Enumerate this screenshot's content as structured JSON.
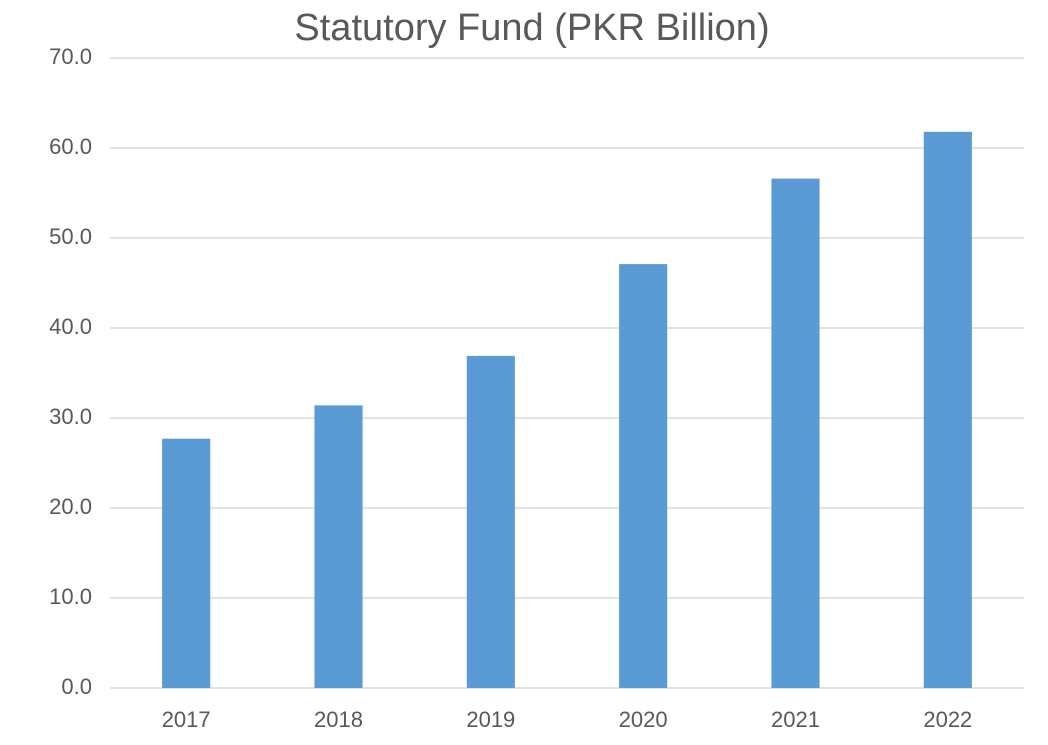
{
  "chart_data": {
    "type": "bar",
    "title": "Statutory Fund (PKR Billion)",
    "categories": [
      "2017",
      "2018",
      "2019",
      "2020",
      "2021",
      "2022"
    ],
    "values": [
      27.7,
      31.4,
      36.9,
      47.1,
      56.6,
      61.8
    ],
    "color": "#5b9bd5",
    "ylim": [
      0,
      70
    ],
    "yticks": [
      {
        "value": 0,
        "label": "0.0"
      },
      {
        "value": 10,
        "label": "10.0"
      },
      {
        "value": 20,
        "label": "20.0"
      },
      {
        "value": 30,
        "label": "30.0"
      },
      {
        "value": 40,
        "label": "40.0"
      },
      {
        "value": 50,
        "label": "50.0"
      },
      {
        "value": 60,
        "label": "60.0"
      },
      {
        "value": 70,
        "label": "70.0"
      }
    ],
    "grid": true
  }
}
